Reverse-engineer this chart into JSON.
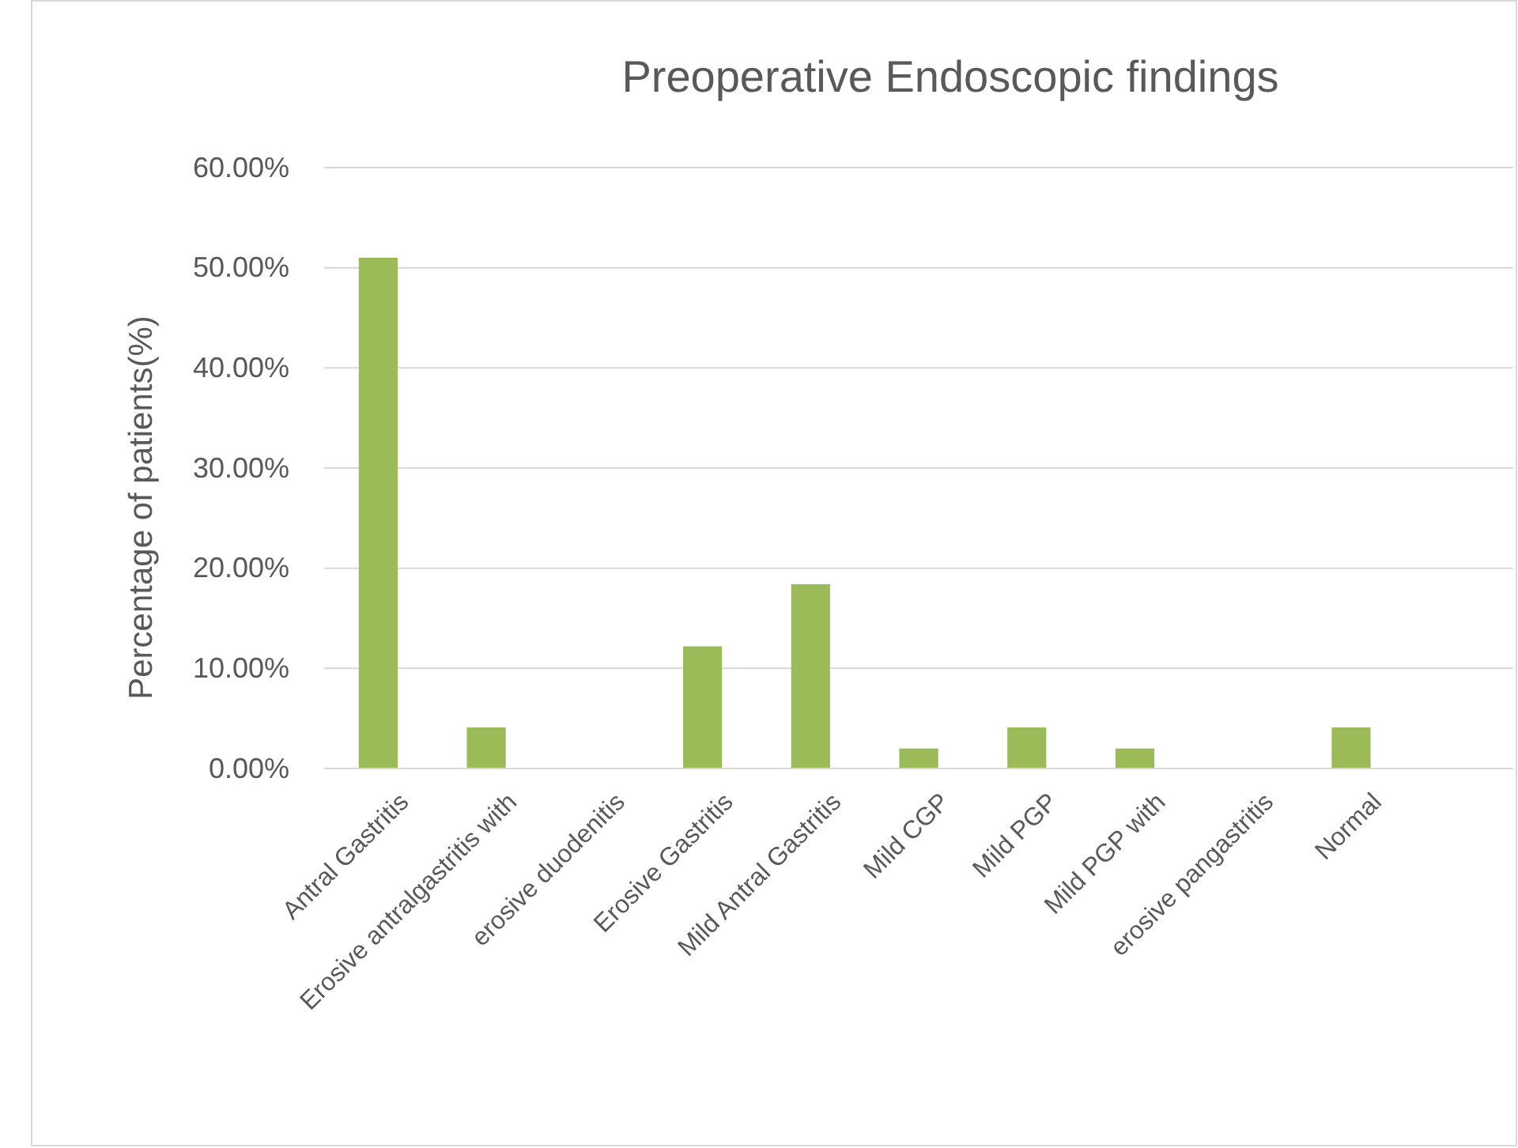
{
  "chart_data": {
    "type": "bar",
    "title": "Preoperative Endoscopic findings",
    "ylabel": "Percentage of patients(%)",
    "categories": [
      "Antral Gastritis",
      "Erosive antralgastritis with",
      "erosive duodenitis",
      "Erosive Gastritis",
      "Mild Antral Gastritis",
      "Mild CGP",
      "Mild PGP",
      "Mild PGP with",
      "erosive pangastritis",
      "Normal",
      null
    ],
    "values": [
      51.0,
      4.1,
      0,
      12.2,
      18.4,
      2.0,
      4.1,
      2.0,
      0,
      4.1,
      null
    ],
    "color": "#9bbb59",
    "ylim": [
      0,
      60
    ],
    "yticks": [
      {
        "value": 0,
        "label": "0.00%"
      },
      {
        "value": 10,
        "label": "10.00%"
      },
      {
        "value": 20,
        "label": "20.00%"
      },
      {
        "value": 30,
        "label": "30.00%"
      },
      {
        "value": 40,
        "label": "40.00%"
      },
      {
        "value": 50,
        "label": "50.00%"
      },
      {
        "value": 60,
        "label": "60.00%"
      }
    ],
    "grid": "y"
  }
}
